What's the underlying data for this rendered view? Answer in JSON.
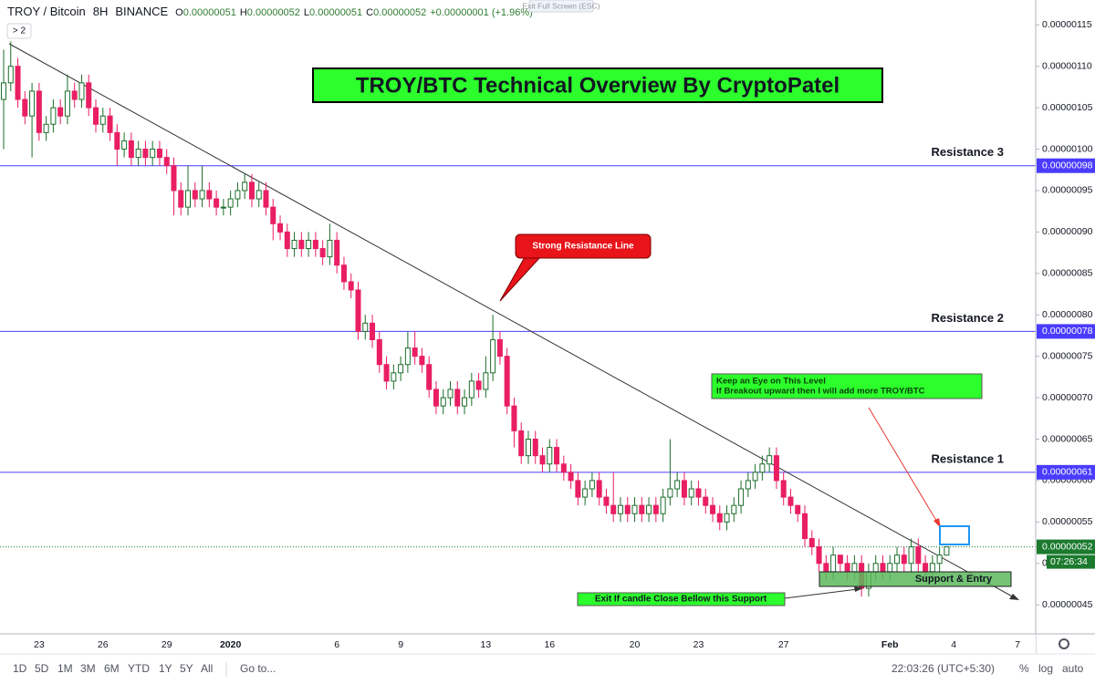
{
  "header": {
    "symbol": "TROY / Bitcoin",
    "interval": "8H",
    "exchange": "BINANCE",
    "o_label": "O",
    "open": "0.00000051",
    "h_label": "H",
    "high": "0.00000052",
    "l_label": "L",
    "low": "0.00000051",
    "c_label": "C",
    "close": "0.00000052",
    "change": "+0.00000001 (+1.96%)",
    "indicator_toggle": "> 2",
    "fullscreen_hint": "Exit Full Screen (ESC)"
  },
  "chart_data": {
    "type": "candlestick",
    "title": "TROY/BTC Technical Overview By CryptoPatel",
    "categories": [
      null,
      null,
      null,
      null,
      null,
      "23",
      null,
      null,
      null,
      null,
      null,
      null,
      null,
      null,
      "26",
      null,
      null,
      null,
      null,
      null,
      null,
      null,
      null,
      "29",
      null,
      null,
      null,
      null,
      null,
      null,
      null,
      null,
      "2020",
      null,
      null,
      null,
      null,
      null,
      null,
      null,
      null,
      null,
      null,
      null,
      null,
      null,
      null,
      "6",
      null,
      null,
      null,
      null,
      null,
      null,
      null,
      null,
      "9",
      null,
      null,
      null,
      null,
      null,
      null,
      null,
      null,
      null,
      null,
      null,
      "13",
      null,
      null,
      null,
      null,
      null,
      null,
      null,
      null,
      "16",
      null,
      null,
      null,
      null,
      null,
      null,
      null,
      null,
      null,
      null,
      null,
      "20",
      null,
      null,
      null,
      null,
      null,
      null,
      null,
      null,
      "23",
      null,
      null,
      null,
      null,
      null,
      null,
      null,
      null,
      null,
      null,
      null,
      "27",
      null,
      null,
      null,
      null,
      null,
      null,
      null,
      null,
      null,
      null,
      null,
      null,
      null,
      null,
      "Feb",
      null,
      null,
      null,
      null,
      null,
      null,
      null,
      null,
      "4",
      null,
      null,
      null,
      null,
      null,
      null,
      null,
      null,
      "7"
    ],
    "open": [
      1.06e-06,
      1.08e-06,
      1.1e-06,
      1.06e-06,
      1.04e-06,
      1.07e-06,
      1.02e-06,
      1.03e-06,
      1.05e-06,
      1.04e-06,
      1.07e-06,
      1.06e-06,
      1.08e-06,
      1.05e-06,
      1.03e-06,
      1.04e-06,
      1.02e-06,
      1e-06,
      1.01e-06,
      9.9e-07,
      1e-06,
      9.9e-07,
      1e-06,
      9.9e-07,
      9.8e-07,
      9.5e-07,
      9.3e-07,
      9.5e-07,
      9.4e-07,
      9.5e-07,
      9.4e-07,
      9.3e-07,
      9.3e-07,
      9.4e-07,
      9.5e-07,
      9.6e-07,
      9.4e-07,
      9.5e-07,
      9.3e-07,
      9.1e-07,
      9e-07,
      8.8e-07,
      8.9e-07,
      8.8e-07,
      8.9e-07,
      8.8e-07,
      8.7e-07,
      8.9e-07,
      8.6e-07,
      8.4e-07,
      8.3e-07,
      7.8e-07,
      7.9e-07,
      7.7e-07,
      7.4e-07,
      7.2e-07,
      7.3e-07,
      7.4e-07,
      7.6e-07,
      7.5e-07,
      7.4e-07,
      7.1e-07,
      6.9e-07,
      7e-07,
      7.1e-07,
      6.9e-07,
      7e-07,
      7.2e-07,
      7.1e-07,
      7.3e-07,
      7.7e-07,
      7.5e-07,
      6.9e-07,
      6.6e-07,
      6.3e-07,
      6.5e-07,
      6.3e-07,
      6.2e-07,
      6.4e-07,
      6.2e-07,
      6.1e-07,
      6e-07,
      5.8e-07,
      5.9e-07,
      6e-07,
      5.8e-07,
      5.7e-07,
      5.6e-07,
      5.7e-07,
      5.6e-07,
      5.7e-07,
      5.6e-07,
      5.7e-07,
      5.6e-07,
      5.8e-07,
      5.9e-07,
      6e-07,
      5.8e-07,
      5.9e-07,
      5.8e-07,
      5.7e-07,
      5.6e-07,
      5.5e-07,
      5.6e-07,
      5.7e-07,
      5.9e-07,
      6e-07,
      6.1e-07,
      6.2e-07,
      6.3e-07,
      6e-07,
      5.8e-07,
      5.7e-07,
      5.6e-07,
      5.3e-07,
      5.2e-07,
      5e-07,
      4.9e-07,
      5.1e-07,
      5e-07,
      4.9e-07,
      5e-07,
      4.7e-07,
      4.9e-07,
      5e-07,
      4.9e-07,
      5e-07,
      5.1e-07,
      5e-07,
      5.2e-07,
      5e-07,
      4.9e-07,
      5e-07,
      5.1e-07,
      null,
      null,
      null,
      null,
      null,
      null,
      null,
      null,
      null,
      null
    ],
    "high": [
      1.12e-06,
      1.13e-06,
      1.11e-06,
      1.07e-06,
      1.08e-06,
      1.08e-06,
      1.04e-06,
      1.06e-06,
      1.06e-06,
      1.09e-06,
      1.08e-06,
      1.09e-06,
      1.09e-06,
      1.06e-06,
      1.05e-06,
      1.05e-06,
      1.03e-06,
      1.02e-06,
      1.02e-06,
      1.01e-06,
      1.01e-06,
      1.01e-06,
      1.01e-06,
      1e-06,
      9.9e-07,
      9.6e-07,
      9.8e-07,
      9.6e-07,
      9.8e-07,
      9.6e-07,
      9.5e-07,
      9.4e-07,
      9.5e-07,
      9.6e-07,
      9.7e-07,
      9.7e-07,
      9.6e-07,
      9.6e-07,
      9.4e-07,
      9.2e-07,
      9.1e-07,
      9e-07,
      9e-07,
      9e-07,
      9e-07,
      8.9e-07,
      9.1e-07,
      9e-07,
      8.7e-07,
      8.5e-07,
      8.4e-07,
      8e-07,
      8e-07,
      7.8e-07,
      7.5e-07,
      7.4e-07,
      7.5e-07,
      7.8e-07,
      7.8e-07,
      7.6e-07,
      7.5e-07,
      7.2e-07,
      7.1e-07,
      7.2e-07,
      7.2e-07,
      7.1e-07,
      7.3e-07,
      7.3e-07,
      7.5e-07,
      8e-07,
      7.8e-07,
      7.6e-07,
      7e-07,
      6.7e-07,
      6.6e-07,
      6.6e-07,
      6.4e-07,
      6.5e-07,
      6.5e-07,
      6.3e-07,
      6.2e-07,
      6.1e-07,
      6e-07,
      6.1e-07,
      6.1e-07,
      5.9e-07,
      6.1e-07,
      5.8e-07,
      5.8e-07,
      5.8e-07,
      5.8e-07,
      5.8e-07,
      5.8e-07,
      5.9e-07,
      6.5e-07,
      6.1e-07,
      6.1e-07,
      6e-07,
      6e-07,
      5.9e-07,
      5.8e-07,
      5.7e-07,
      5.7e-07,
      5.8e-07,
      6e-07,
      6.1e-07,
      6.2e-07,
      6.3e-07,
      6.4e-07,
      6.4e-07,
      6.1e-07,
      5.9e-07,
      5.7e-07,
      5.7e-07,
      5.4e-07,
      5.3e-07,
      5.1e-07,
      5.2e-07,
      5.1e-07,
      5.1e-07,
      5.1e-07,
      5.1e-07,
      5e-07,
      5.1e-07,
      5.1e-07,
      5.1e-07,
      5.2e-07,
      5.2e-07,
      5.3e-07,
      5.3e-07,
      5.1e-07,
      5.1e-07,
      5.2e-07,
      5.2e-07,
      null,
      null,
      null,
      null,
      null,
      null,
      null,
      null,
      null,
      null
    ],
    "low": [
      1e-06,
      1.07e-06,
      1.05e-06,
      1.03e-06,
      9.9e-07,
      1.01e-06,
      1.01e-06,
      1.02e-06,
      1.03e-06,
      1.03e-06,
      1.05e-06,
      1.05e-06,
      1.04e-06,
      1.02e-06,
      1.02e-06,
      1.01e-06,
      9.8e-07,
      9.9e-07,
      9.8e-07,
      9.8e-07,
      9.8e-07,
      9.8e-07,
      9.8e-07,
      9.7e-07,
      9.2e-07,
      9.2e-07,
      9.2e-07,
      9.3e-07,
      9.3e-07,
      9.3e-07,
      9.2e-07,
      9.2e-07,
      9.2e-07,
      9.3e-07,
      9.4e-07,
      9.3e-07,
      9.3e-07,
      9.2e-07,
      8.9e-07,
      8.9e-07,
      8.7e-07,
      8.7e-07,
      8.7e-07,
      8.7e-07,
      8.7e-07,
      8.6e-07,
      8.6e-07,
      8.5e-07,
      8.3e-07,
      8.2e-07,
      7.7e-07,
      7.7e-07,
      7.6e-07,
      7.3e-07,
      7.1e-07,
      7.1e-07,
      7.2e-07,
      7.3e-07,
      7.4e-07,
      7.3e-07,
      7e-07,
      6.8e-07,
      6.8e-07,
      6.9e-07,
      6.8e-07,
      6.8e-07,
      6.9e-07,
      7e-07,
      7e-07,
      7.2e-07,
      7.4e-07,
      6.8e-07,
      6.4e-07,
      6.2e-07,
      6.2e-07,
      6.2e-07,
      6.1e-07,
      6.1e-07,
      6.1e-07,
      6e-07,
      5.9e-07,
      5.7e-07,
      5.7e-07,
      5.8e-07,
      5.7e-07,
      5.6e-07,
      5.5e-07,
      5.5e-07,
      5.5e-07,
      5.5e-07,
      5.5e-07,
      5.5e-07,
      5.5e-07,
      5.5e-07,
      5.7e-07,
      5.8e-07,
      5.7e-07,
      5.7e-07,
      5.7e-07,
      5.6e-07,
      5.5e-07,
      5.4e-07,
      5.4e-07,
      5.5e-07,
      5.6e-07,
      5.8e-07,
      5.9e-07,
      6e-07,
      6.1e-07,
      5.9e-07,
      5.7e-07,
      5.6e-07,
      5.5e-07,
      5.2e-07,
      5.1e-07,
      4.9e-07,
      4.8e-07,
      4.8e-07,
      4.9e-07,
      4.8e-07,
      4.8e-07,
      4.6e-07,
      4.6e-07,
      4.8e-07,
      4.8e-07,
      4.8e-07,
      4.9e-07,
      4.9e-07,
      4.9e-07,
      4.9e-07,
      4.8e-07,
      4.8e-07,
      4.9e-07,
      5.1e-07,
      null,
      null,
      null,
      null,
      null,
      null,
      null,
      null,
      null,
      null
    ],
    "close": [
      1.08e-06,
      1.1e-06,
      1.06e-06,
      1.04e-06,
      1.07e-06,
      1.02e-06,
      1.03e-06,
      1.05e-06,
      1.04e-06,
      1.07e-06,
      1.06e-06,
      1.08e-06,
      1.05e-06,
      1.03e-06,
      1.04e-06,
      1.02e-06,
      1e-06,
      1.01e-06,
      9.9e-07,
      1e-06,
      9.9e-07,
      1e-06,
      9.9e-07,
      9.8e-07,
      9.5e-07,
      9.3e-07,
      9.5e-07,
      9.4e-07,
      9.5e-07,
      9.4e-07,
      9.3e-07,
      9.3e-07,
      9.4e-07,
      9.5e-07,
      9.6e-07,
      9.4e-07,
      9.5e-07,
      9.3e-07,
      9.1e-07,
      9e-07,
      8.8e-07,
      8.9e-07,
      8.8e-07,
      8.9e-07,
      8.8e-07,
      8.7e-07,
      8.9e-07,
      8.6e-07,
      8.4e-07,
      8.3e-07,
      7.8e-07,
      7.9e-07,
      7.7e-07,
      7.4e-07,
      7.2e-07,
      7.3e-07,
      7.4e-07,
      7.6e-07,
      7.5e-07,
      7.4e-07,
      7.1e-07,
      6.9e-07,
      7e-07,
      7.1e-07,
      6.9e-07,
      7e-07,
      7.2e-07,
      7.1e-07,
      7.3e-07,
      7.7e-07,
      7.5e-07,
      6.9e-07,
      6.6e-07,
      6.3e-07,
      6.5e-07,
      6.3e-07,
      6.2e-07,
      6.4e-07,
      6.2e-07,
      6.1e-07,
      6e-07,
      5.8e-07,
      5.9e-07,
      6e-07,
      5.8e-07,
      5.7e-07,
      5.6e-07,
      5.7e-07,
      5.6e-07,
      5.7e-07,
      5.6e-07,
      5.7e-07,
      5.6e-07,
      5.8e-07,
      5.9e-07,
      6e-07,
      5.8e-07,
      5.9e-07,
      5.8e-07,
      5.7e-07,
      5.6e-07,
      5.5e-07,
      5.6e-07,
      5.7e-07,
      5.9e-07,
      6e-07,
      6.1e-07,
      6.2e-07,
      6.3e-07,
      6e-07,
      5.8e-07,
      5.7e-07,
      5.6e-07,
      5.3e-07,
      5.2e-07,
      5e-07,
      4.9e-07,
      5.1e-07,
      5e-07,
      4.9e-07,
      5e-07,
      4.7e-07,
      4.9e-07,
      5e-07,
      4.9e-07,
      5e-07,
      5.1e-07,
      5e-07,
      5.2e-07,
      5e-07,
      4.9e-07,
      5e-07,
      5.1e-07,
      5.2e-07,
      null,
      null,
      null,
      null,
      null,
      null,
      null,
      null,
      null,
      null
    ],
    "up_color": "#ffffff",
    "up_border": "#1b6e2a",
    "down_color": "#e91e63",
    "ylim": [
      4.15e-07,
      1.18e-06
    ],
    "yticks": [
      {
        "value": 4.5e-07,
        "label": "0.00000045"
      },
      {
        "value": 5e-07,
        "label": "0.00000050"
      },
      {
        "value": 5.5e-07,
        "label": "0.00000055"
      },
      {
        "value": 6e-07,
        "label": "0.00000060"
      },
      {
        "value": 6.5e-07,
        "label": "0.00000065"
      },
      {
        "value": 7e-07,
        "label": "0.00000070"
      },
      {
        "value": 7.5e-07,
        "label": "0.00000075"
      },
      {
        "value": 8e-07,
        "label": "0.00000080"
      },
      {
        "value": 8.5e-07,
        "label": "0.00000085"
      },
      {
        "value": 9e-07,
        "label": "0.00000090"
      },
      {
        "value": 9.5e-07,
        "label": "0.00000095"
      },
      {
        "value": 1e-06,
        "label": "0.00000100"
      },
      {
        "value": 1.05e-06,
        "label": "0.00000105"
      },
      {
        "value": 1.1e-06,
        "label": "0.00000110"
      },
      {
        "value": 1.15e-06,
        "label": "0.00000115"
      }
    ],
    "grid": false,
    "levels": [
      {
        "name": "Resistance 3",
        "value": 9.8e-07,
        "label": "0.00000098"
      },
      {
        "name": "Resistance 2",
        "value": 7.8e-07,
        "label": "0.00000078"
      },
      {
        "name": "Resistance 1",
        "value": 6.1e-07,
        "label": "0.00000061"
      }
    ],
    "level_color": "#4a3cff",
    "last_price": {
      "value": 5.2e-07,
      "label": "0.00000052",
      "countdown": "07:26:34",
      "color": "#1b7a2e"
    },
    "annotations": {
      "trendline": "Strong Resistance Line",
      "watch_title": "Keep an Eye on This Level",
      "watch_text": "If Breakout upward then I will add more TROY/BTC",
      "support": "Support & Entry",
      "exit": "Exit If candle Close Bellow this Support"
    }
  },
  "toolbar": {
    "ranges": [
      "1D",
      "5D",
      "1M",
      "3M",
      "6M",
      "YTD",
      "1Y",
      "5Y",
      "All"
    ],
    "goto": "Go to...",
    "clock": "22:03:26 (UTC+5:30)",
    "options": [
      "%",
      "log",
      "auto"
    ]
  }
}
